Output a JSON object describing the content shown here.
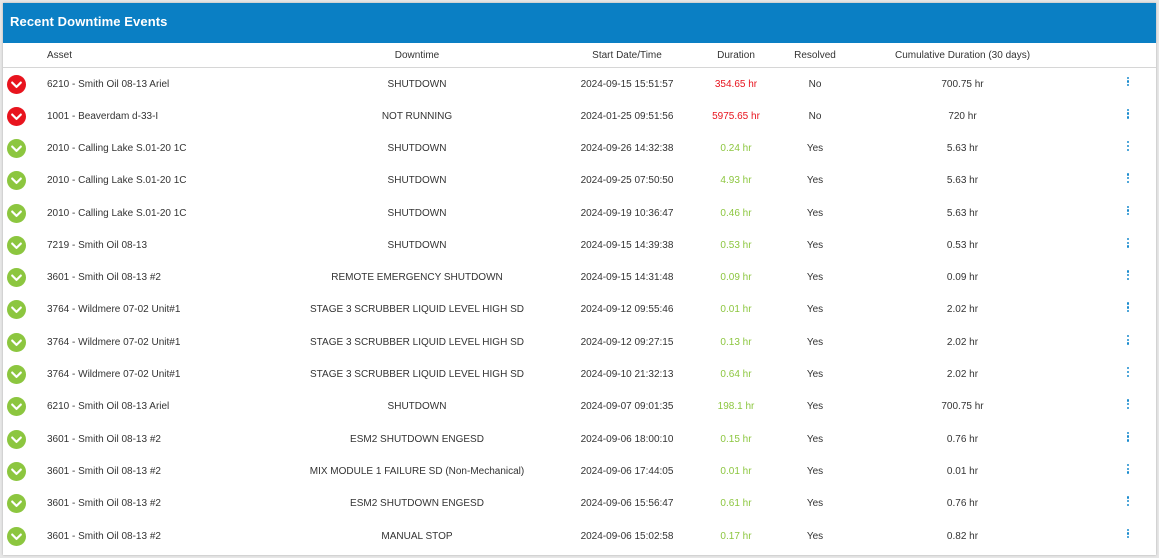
{
  "panel": {
    "title": "Recent Downtime Events"
  },
  "colors": {
    "header_bg": "#0a7fc4",
    "unresolved": "#e8141e",
    "resolved": "#8cc63f",
    "menu_dots": "#1c8ccf"
  },
  "columns": {
    "asset": "Asset",
    "downtime": "Downtime",
    "start": "Start Date/Time",
    "duration": "Duration",
    "resolved": "Resolved",
    "cumulative": "Cumulative Duration (30 days)"
  },
  "rows": [
    {
      "status_icon": "chevron-down-icon",
      "status": "unresolved",
      "asset": "6210 - Smith Oil 08-13 Ariel",
      "downtime": "SHUTDOWN",
      "start": "2024-09-15 15:51:57",
      "duration": "354.65 hr",
      "resolved": "No",
      "cumulative": "700.75 hr"
    },
    {
      "status_icon": "chevron-down-icon",
      "status": "unresolved",
      "asset": "1001 - Beaverdam d-33-I",
      "downtime": "NOT RUNNING",
      "start": "2024-01-25 09:51:56",
      "duration": "5975.65 hr",
      "resolved": "No",
      "cumulative": "720 hr"
    },
    {
      "status_icon": "chevron-down-icon",
      "status": "resolved",
      "asset": "2010 - Calling Lake S.01-20 1C",
      "downtime": "SHUTDOWN",
      "start": "2024-09-26 14:32:38",
      "duration": "0.24 hr",
      "resolved": "Yes",
      "cumulative": "5.63 hr"
    },
    {
      "status_icon": "chevron-down-icon",
      "status": "resolved",
      "asset": "2010 - Calling Lake S.01-20 1C",
      "downtime": "SHUTDOWN",
      "start": "2024-09-25 07:50:50",
      "duration": "4.93 hr",
      "resolved": "Yes",
      "cumulative": "5.63 hr"
    },
    {
      "status_icon": "chevron-down-icon",
      "status": "resolved",
      "asset": "2010 - Calling Lake S.01-20 1C",
      "downtime": "SHUTDOWN",
      "start": "2024-09-19 10:36:47",
      "duration": "0.46 hr",
      "resolved": "Yes",
      "cumulative": "5.63 hr"
    },
    {
      "status_icon": "chevron-down-icon",
      "status": "resolved",
      "asset": "7219 - Smith Oil 08-13",
      "downtime": "SHUTDOWN",
      "start": "2024-09-15 14:39:38",
      "duration": "0.53 hr",
      "resolved": "Yes",
      "cumulative": "0.53 hr"
    },
    {
      "status_icon": "chevron-down-icon",
      "status": "resolved",
      "asset": "3601 - Smith Oil 08-13 #2",
      "downtime": "REMOTE EMERGENCY SHUTDOWN",
      "start": "2024-09-15 14:31:48",
      "duration": "0.09 hr",
      "resolved": "Yes",
      "cumulative": "0.09 hr"
    },
    {
      "status_icon": "chevron-down-icon",
      "status": "resolved",
      "asset": "3764 - Wildmere 07-02 Unit#1",
      "downtime": "STAGE 3 SCRUBBER LIQUID LEVEL HIGH SD",
      "start": "2024-09-12 09:55:46",
      "duration": "0.01 hr",
      "resolved": "Yes",
      "cumulative": "2.02 hr"
    },
    {
      "status_icon": "chevron-down-icon",
      "status": "resolved",
      "asset": "3764 - Wildmere 07-02 Unit#1",
      "downtime": "STAGE 3 SCRUBBER LIQUID LEVEL HIGH SD",
      "start": "2024-09-12 09:27:15",
      "duration": "0.13 hr",
      "resolved": "Yes",
      "cumulative": "2.02 hr"
    },
    {
      "status_icon": "chevron-down-icon",
      "status": "resolved",
      "asset": "3764 - Wildmere 07-02 Unit#1",
      "downtime": "STAGE 3 SCRUBBER LIQUID LEVEL HIGH SD",
      "start": "2024-09-10 21:32:13",
      "duration": "0.64 hr",
      "resolved": "Yes",
      "cumulative": "2.02 hr"
    },
    {
      "status_icon": "chevron-down-icon",
      "status": "resolved",
      "asset": "6210 - Smith Oil 08-13 Ariel",
      "downtime": "SHUTDOWN",
      "start": "2024-09-07 09:01:35",
      "duration": "198.1 hr",
      "resolved": "Yes",
      "cumulative": "700.75 hr"
    },
    {
      "status_icon": "chevron-down-icon",
      "status": "resolved",
      "asset": "3601 - Smith Oil 08-13 #2",
      "downtime": "ESM2 SHUTDOWN ENGESD",
      "start": "2024-09-06 18:00:10",
      "duration": "0.15 hr",
      "resolved": "Yes",
      "cumulative": "0.76 hr"
    },
    {
      "status_icon": "chevron-down-icon",
      "status": "resolved",
      "asset": "3601 - Smith Oil 08-13 #2",
      "downtime": "MIX MODULE 1 FAILURE SD (Non-Mechanical)",
      "start": "2024-09-06 17:44:05",
      "duration": "0.01 hr",
      "resolved": "Yes",
      "cumulative": "0.01 hr"
    },
    {
      "status_icon": "chevron-down-icon",
      "status": "resolved",
      "asset": "3601 - Smith Oil 08-13 #2",
      "downtime": "ESM2 SHUTDOWN ENGESD",
      "start": "2024-09-06 15:56:47",
      "duration": "0.61 hr",
      "resolved": "Yes",
      "cumulative": "0.76 hr"
    },
    {
      "status_icon": "chevron-down-icon",
      "status": "resolved",
      "asset": "3601 - Smith Oil 08-13 #2",
      "downtime": "MANUAL STOP",
      "start": "2024-09-06 15:02:58",
      "duration": "0.17 hr",
      "resolved": "Yes",
      "cumulative": "0.82 hr"
    }
  ]
}
